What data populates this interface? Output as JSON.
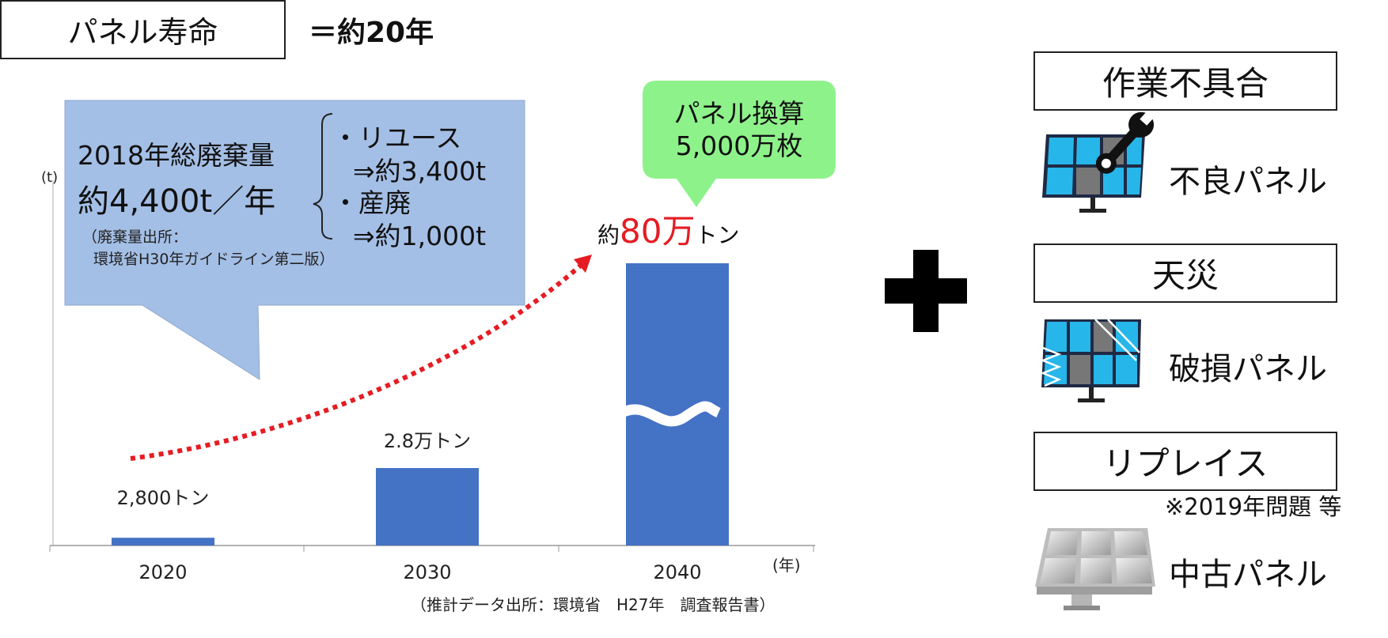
{
  "header": {
    "title": "パネル寿命",
    "lifespan": "＝約20年"
  },
  "callout_blue": {
    "line1": "2018年総廃棄量",
    "line2": "約4,400t／年",
    "source1": "（廃棄量出所：",
    "source2": "環境省H30年ガイドライン第二版）",
    "reuse_label": "・リユース",
    "reuse_value": "⇒約3,400t",
    "disposal_label": "・産廃",
    "disposal_value": "⇒約1,000t"
  },
  "callout_green": {
    "line1": "パネル換算",
    "line2": "5,000万枚"
  },
  "chart_data": {
    "type": "bar",
    "categories": [
      "2020",
      "2030",
      "2040"
    ],
    "values": [
      2800,
      28000,
      800000
    ],
    "data_labels": [
      "2,800トン",
      "2.8万トン",
      ""
    ],
    "big_label_prefix": "約",
    "big_label_value": "80万",
    "big_label_suffix": "トン",
    "ylabel": "(t)",
    "xlabel": "(年)",
    "source": "（推計データ出所：環境省　H27年　調査報告書）",
    "axis_break": true,
    "colors": {
      "bar": "#4472C4",
      "arrow": "#E51C23",
      "callout_blue": "#A4BFE6",
      "callout_green": "#8EF28A",
      "highlight": "#E51C23"
    }
  },
  "categories": [
    {
      "title": "作業不具合",
      "panel_label": "不良パネル",
      "icon": "wrench-panel-icon"
    },
    {
      "title": "天災",
      "panel_label": "破損パネル",
      "icon": "broken-panel-icon"
    },
    {
      "title": "リプレイス",
      "panel_label": "中古パネル",
      "icon": "used-panel-icon",
      "note": "※2019年問題 等"
    }
  ]
}
